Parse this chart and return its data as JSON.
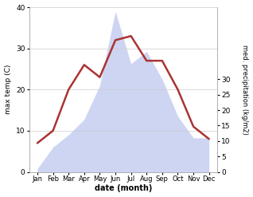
{
  "months": [
    "Jan",
    "Feb",
    "Mar",
    "Apr",
    "May",
    "Jun",
    "Jul",
    "Aug",
    "Sep",
    "Oct",
    "Nov",
    "Dec"
  ],
  "temperature": [
    7,
    10,
    20,
    26,
    23,
    32,
    33,
    27,
    27,
    20,
    11,
    8
  ],
  "precipitation": [
    1,
    8,
    12,
    17,
    28,
    52,
    35,
    39,
    30,
    18,
    11,
    11
  ],
  "temp_color": "#aa3333",
  "precip_fill_color": "#c5cef0",
  "precip_fill_alpha": 0.85,
  "temp_ylim": [
    0,
    40
  ],
  "precip_ylim": [
    0,
    53.3
  ],
  "temp_yticks": [
    0,
    10,
    20,
    30,
    40
  ],
  "precip_yticks": [
    0,
    5,
    10,
    15,
    20,
    25,
    30
  ],
  "precip_yticklabels": [
    "0",
    "5",
    "10",
    "15",
    "20",
    "25",
    "30"
  ],
  "xlabel": "date (month)",
  "ylabel_left": "max temp (C)",
  "ylabel_right": "med. precipitation (kg/m2)",
  "temp_linewidth": 1.8,
  "background_color": "#ffffff",
  "spine_color": "#aaaaaa"
}
